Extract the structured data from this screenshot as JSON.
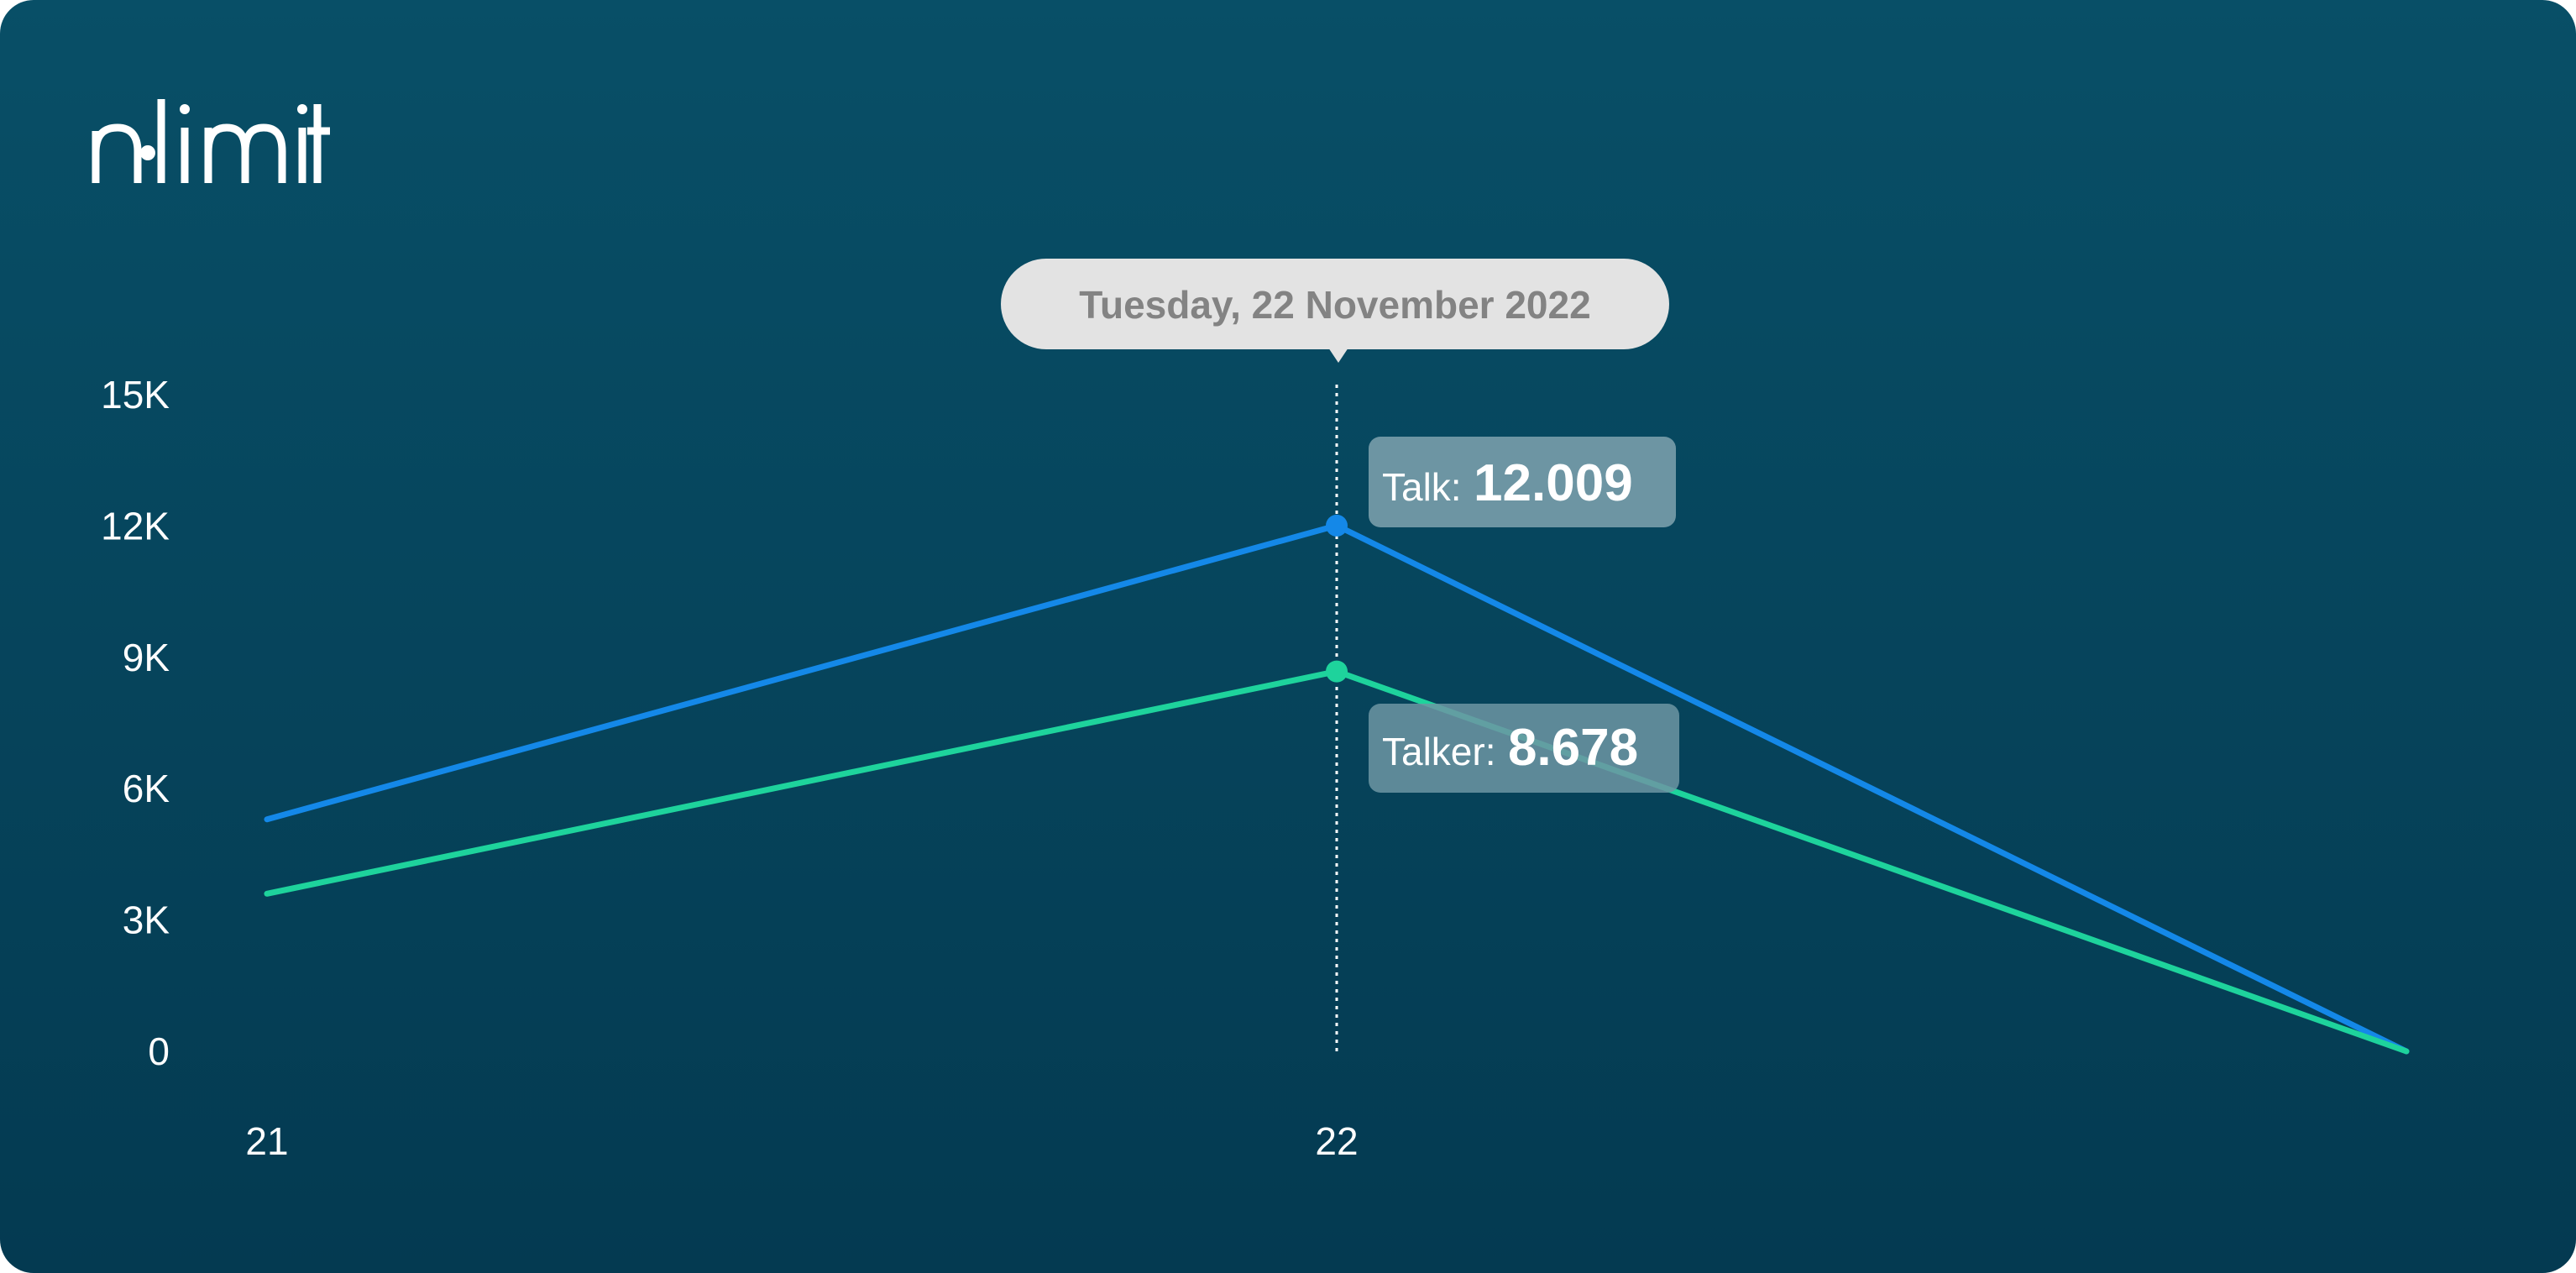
{
  "brand": {
    "logo_text": "nlimit"
  },
  "colors": {
    "background_top": "#084f67",
    "background_bottom": "#043a51",
    "talk_line": "#1488e8",
    "talker_line": "#1ed39c",
    "tooltip_bg": "#e3e3e3",
    "tooltip_text": "#838383",
    "value_box_bg": "#6d95a3"
  },
  "tooltip": {
    "date": "Tuesday, 22 November 2022",
    "items": [
      {
        "label": "Talk:",
        "value": "12.009"
      },
      {
        "label": "Talker:",
        "value": "8.678"
      }
    ]
  },
  "chart_data": {
    "type": "line",
    "y_ticks": [
      "0",
      "3K",
      "6K",
      "9K",
      "12K",
      "15K"
    ],
    "ylim": [
      0,
      15000
    ],
    "x_ticks": [
      "21",
      "22"
    ],
    "x": [
      21,
      22,
      23
    ],
    "series": [
      {
        "name": "Talk",
        "values": [
          5300,
          12009,
          0
        ]
      },
      {
        "name": "Talker",
        "values": [
          3600,
          8678,
          0
        ]
      }
    ],
    "highlight_x": 22,
    "grid": false,
    "legend": "none"
  }
}
